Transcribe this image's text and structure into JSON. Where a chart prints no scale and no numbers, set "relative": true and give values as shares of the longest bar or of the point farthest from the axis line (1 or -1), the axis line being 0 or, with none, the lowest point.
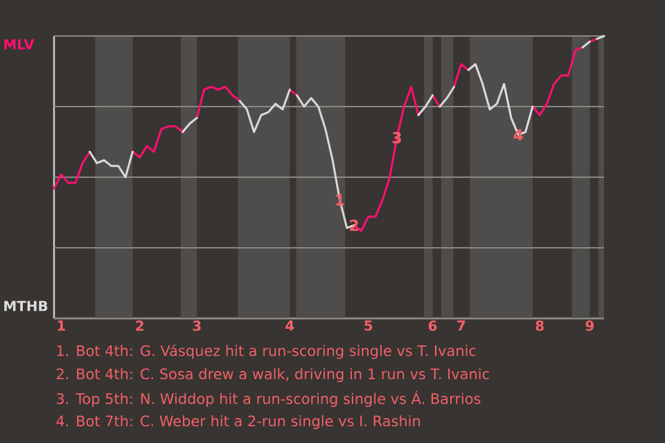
{
  "chart_data": {
    "type": "line",
    "relative": true,
    "grid": "y",
    "marker": "none",
    "line_style": "solid",
    "categories": [
      null,
      "1",
      null,
      null,
      null,
      null,
      null,
      null,
      null,
      null,
      null,
      null,
      "2",
      null,
      null,
      null,
      null,
      null,
      null,
      null,
      "3",
      null,
      null,
      null,
      null,
      null,
      null,
      null,
      null,
      null,
      null,
      null,
      null,
      "4",
      null,
      null,
      null,
      null,
      null,
      null,
      null,
      null,
      null,
      null,
      "5",
      null,
      null,
      null,
      null,
      null,
      null,
      null,
      null,
      "6",
      null,
      null,
      null,
      "7",
      null,
      null,
      null,
      null,
      null,
      null,
      null,
      null,
      null,
      null,
      "8",
      null,
      null,
      null,
      null,
      null,
      null,
      "9",
      null,
      null
    ],
    "series": [
      {
        "color": "#ff1070",
        "values": [
          0.46,
          0.51,
          0.48,
          0.48,
          0.55,
          0.59,
          null,
          null,
          null,
          null,
          null,
          0.59,
          0.57,
          0.61,
          0.59,
          0.67,
          0.68,
          0.68,
          0.66,
          null,
          0.71,
          0.81,
          0.82,
          0.81,
          0.82,
          0.79,
          0.77,
          null,
          null,
          null,
          null,
          null,
          null,
          0.81,
          0.79,
          null,
          null,
          null,
          null,
          null,
          null,
          null,
          0.33,
          0.31,
          0.36,
          0.36,
          0.42,
          0.5,
          0.64,
          0.75,
          0.82,
          0.72,
          null,
          0.79,
          0.75,
          null,
          0.82,
          0.9,
          0.88,
          null,
          null,
          null,
          null,
          null,
          null,
          null,
          null,
          0.75,
          0.72,
          0.76,
          0.83,
          0.86,
          0.86,
          0.95,
          0.96,
          null,
          null,
          null
        ]
      },
      {
        "color": "#ff1171",
        "values": [
          null,
          null,
          null,
          null,
          null,
          null,
          null,
          null,
          null,
          null,
          null,
          null,
          null,
          null,
          null,
          null,
          null,
          null,
          null,
          null,
          null,
          null,
          null,
          null,
          null,
          null,
          null,
          null,
          null,
          null,
          null,
          null,
          null,
          null,
          null,
          null,
          null,
          null,
          null,
          null,
          null,
          null,
          null,
          null,
          null,
          null,
          null,
          null,
          null,
          null,
          null,
          null,
          null,
          null,
          null,
          null,
          null,
          null,
          null,
          null,
          null,
          null,
          null,
          null,
          null,
          null,
          null,
          null,
          null,
          null,
          null,
          null,
          null,
          null,
          null,
          0.98,
          0.99,
          null
        ]
      },
      {
        "color": "#d9d9d9",
        "values": [
          null,
          null,
          null,
          null,
          null,
          0.59,
          0.55,
          0.56,
          0.54,
          0.54,
          0.5,
          0.59,
          null,
          null,
          null,
          null,
          null,
          null,
          null,
          null,
          null,
          null,
          null,
          null,
          null,
          null,
          0.77,
          0.74,
          0.66,
          0.72,
          0.73,
          0.76,
          0.74,
          0.81,
          null,
          null,
          null,
          null,
          null,
          null,
          null,
          null,
          null,
          null,
          null,
          null,
          null,
          null,
          null,
          null,
          null,
          null,
          null,
          null,
          null,
          null,
          null,
          null,
          null,
          null,
          null,
          null,
          null,
          null,
          null,
          null,
          null,
          null,
          null,
          null,
          null,
          null,
          null,
          null,
          null,
          null,
          0.99,
          1
        ]
      },
      {
        "color": "#dadada",
        "values": [
          null,
          null,
          null,
          null,
          null,
          null,
          null,
          null,
          null,
          null,
          null,
          null,
          null,
          null,
          null,
          null,
          null,
          null,
          0.66,
          0.69,
          0.71,
          null,
          null,
          null,
          null,
          null,
          null,
          null,
          null,
          null,
          null,
          null,
          null,
          null,
          null,
          null,
          null,
          null,
          null,
          null,
          null,
          null,
          null,
          null,
          null,
          null,
          null,
          null,
          null,
          null,
          null,
          null,
          null,
          null,
          null,
          null,
          null,
          null,
          null,
          null,
          null,
          null,
          null,
          null,
          null,
          null,
          null,
          null,
          null,
          null,
          null,
          null,
          null,
          null,
          null,
          null,
          null,
          null
        ]
      },
      {
        "color": "#d8d8d8",
        "values": [
          null,
          null,
          null,
          null,
          null,
          null,
          null,
          null,
          null,
          null,
          null,
          null,
          null,
          null,
          null,
          null,
          null,
          null,
          null,
          null,
          null,
          null,
          null,
          null,
          null,
          null,
          null,
          null,
          null,
          null,
          null,
          null,
          null,
          null,
          0.79,
          0.75,
          0.78,
          0.75,
          0.67,
          0.56,
          0.42,
          0.32,
          0.33,
          null,
          null,
          null,
          null,
          null,
          null,
          null,
          null,
          null,
          null,
          null,
          null,
          null,
          null,
          null,
          null,
          null,
          null,
          null,
          null,
          null,
          null,
          null,
          null,
          null,
          null,
          null,
          null,
          null,
          null,
          null,
          null,
          null,
          null,
          null
        ]
      },
      {
        "color": "#dbdbdb",
        "values": [
          null,
          null,
          null,
          null,
          null,
          null,
          null,
          null,
          null,
          null,
          null,
          null,
          null,
          null,
          null,
          null,
          null,
          null,
          null,
          null,
          null,
          null,
          null,
          null,
          null,
          null,
          null,
          null,
          null,
          null,
          null,
          null,
          null,
          null,
          null,
          null,
          null,
          null,
          null,
          null,
          null,
          null,
          null,
          null,
          null,
          null,
          null,
          null,
          null,
          null,
          null,
          0.72,
          0.75,
          0.79,
          null,
          null,
          null,
          null,
          null,
          null,
          null,
          null,
          null,
          null,
          null,
          null,
          null,
          null,
          null,
          null,
          null,
          null,
          null,
          null,
          null,
          null,
          null,
          null
        ]
      },
      {
        "color": "#d7d7d7",
        "values": [
          null,
          null,
          null,
          null,
          null,
          null,
          null,
          null,
          null,
          null,
          null,
          null,
          null,
          null,
          null,
          null,
          null,
          null,
          null,
          null,
          null,
          null,
          null,
          null,
          null,
          null,
          null,
          null,
          null,
          null,
          null,
          null,
          null,
          null,
          null,
          null,
          null,
          null,
          null,
          null,
          null,
          null,
          null,
          null,
          null,
          null,
          null,
          null,
          null,
          null,
          null,
          null,
          null,
          null,
          0.75,
          0.78,
          0.82,
          null,
          null,
          null,
          null,
          null,
          null,
          null,
          null,
          null,
          null,
          null,
          null,
          null,
          null,
          null,
          null,
          null,
          null,
          null,
          null,
          null
        ]
      },
      {
        "color": "#dcdcdc",
        "values": [
          null,
          null,
          null,
          null,
          null,
          null,
          null,
          null,
          null,
          null,
          null,
          null,
          null,
          null,
          null,
          null,
          null,
          null,
          null,
          null,
          null,
          null,
          null,
          null,
          null,
          null,
          null,
          null,
          null,
          null,
          null,
          null,
          null,
          null,
          null,
          null,
          null,
          null,
          null,
          null,
          null,
          null,
          null,
          null,
          null,
          null,
          null,
          null,
          null,
          null,
          null,
          null,
          null,
          null,
          null,
          null,
          null,
          null,
          0.88,
          0.9,
          0.83,
          0.74,
          0.76,
          0.83,
          0.71,
          0.65,
          0.66,
          0.75,
          null,
          null,
          null,
          null,
          null,
          null,
          0.96,
          0.98,
          null,
          null
        ]
      }
    ],
    "annotations": [
      {
        "text": "1",
        "y": 0.42
      },
      {
        "text": "2",
        "y": 0.33
      },
      {
        "text": "3",
        "y": 0.64
      },
      {
        "text": "4",
        "y": 0.65
      },
      "MLV",
      "MTHB",
      "1. Bot 4th: G. Vásquez hit a run-scoring single vs T. Ivanic",
      "2. Bot 4th: C. Sosa drew a walk, driving in 1 run vs T. Ivanic",
      "3. Top 5th: N. Widdop hit a run-scoring single vs Á. Barrios",
      "4. Bot 7th: C. Weber hit a 2-run single vs I. Rashin"
    ]
  }
}
